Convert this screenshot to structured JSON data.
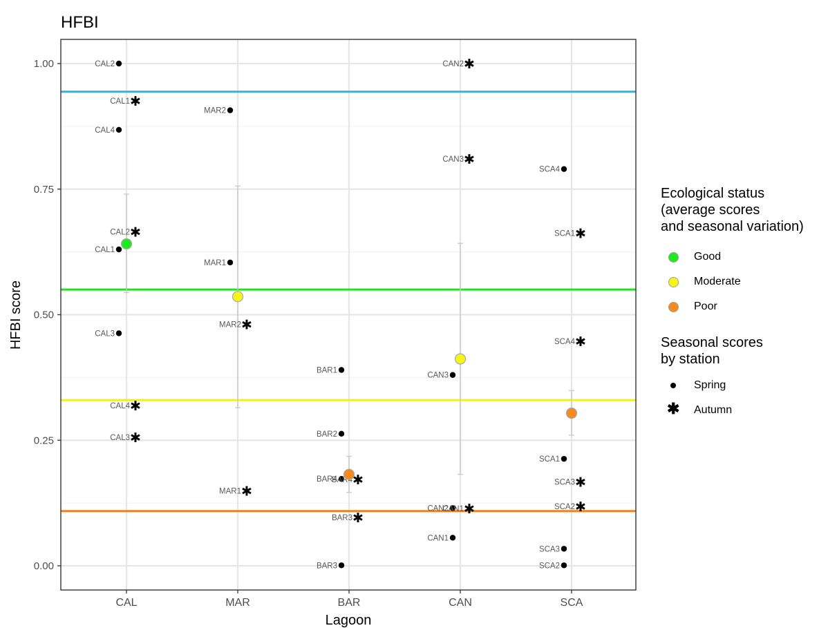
{
  "chart_data": {
    "type": "scatter",
    "title": "HFBI",
    "xlabel": "Lagoon",
    "ylabel": "HFBI score",
    "categories": [
      "CAL",
      "MAR",
      "BAR",
      "CAN",
      "SCA"
    ],
    "ylim": [
      -0.04,
      1.05
    ],
    "yticks": [
      "0.00",
      "0.25",
      "0.50",
      "0.75",
      "1.00"
    ],
    "grid": true,
    "legend_position": "right",
    "thresholds": [
      {
        "value": 0.944,
        "color": "#29b6e6"
      },
      {
        "value": 0.55,
        "color": "#22e022"
      },
      {
        "value": 0.33,
        "color": "#eef020"
      },
      {
        "value": 0.109,
        "color": "#f08020"
      }
    ],
    "status_colors": {
      "Good": "#22e822",
      "Moderate": "#f5f51a",
      "Poor": "#f58a1f"
    },
    "average_scores": [
      {
        "lagoon": "CAL",
        "mean": 0.641,
        "lower": 0.544,
        "upper": 0.74,
        "status": "Good"
      },
      {
        "lagoon": "MAR",
        "mean": 0.536,
        "lower": 0.315,
        "upper": 0.756,
        "status": "Moderate"
      },
      {
        "lagoon": "BAR",
        "mean": 0.182,
        "lower": 0.146,
        "upper": 0.218,
        "status": "Poor"
      },
      {
        "lagoon": "CAN",
        "mean": 0.412,
        "lower": 0.182,
        "upper": 0.642,
        "status": "Moderate"
      },
      {
        "lagoon": "SCA",
        "mean": 0.304,
        "lower": 0.26,
        "upper": 0.349,
        "status": "Poor"
      }
    ],
    "series": [
      {
        "name": "Spring",
        "points": [
          {
            "lagoon": "CAL",
            "station": "CAL2",
            "value": 1.0
          },
          {
            "lagoon": "CAL",
            "station": "CAL4",
            "value": 0.868
          },
          {
            "lagoon": "CAL",
            "station": "CAL1",
            "value": 0.63
          },
          {
            "lagoon": "CAL",
            "station": "CAL3",
            "value": 0.463
          },
          {
            "lagoon": "MAR",
            "station": "MAR2",
            "value": 0.907
          },
          {
            "lagoon": "MAR",
            "station": "MAR1",
            "value": 0.604
          },
          {
            "lagoon": "BAR",
            "station": "BAR1",
            "value": 0.39
          },
          {
            "lagoon": "BAR",
            "station": "BAR2",
            "value": 0.263
          },
          {
            "lagoon": "BAR",
            "station": "BAR4",
            "value": 0.173
          },
          {
            "lagoon": "BAR",
            "station": "BAR3",
            "value": 0.001
          },
          {
            "lagoon": "CAN",
            "station": "CAN3",
            "value": 0.38
          },
          {
            "lagoon": "CAN",
            "station": "CAN2",
            "value": 0.115
          },
          {
            "lagoon": "CAN",
            "station": "CAN1",
            "value": 0.056
          },
          {
            "lagoon": "SCA",
            "station": "SCA4",
            "value": 0.79
          },
          {
            "lagoon": "SCA",
            "station": "SCA1",
            "value": 0.213
          },
          {
            "lagoon": "SCA",
            "station": "SCA3",
            "value": 0.034
          },
          {
            "lagoon": "SCA",
            "station": "SCA2",
            "value": 0.001
          }
        ]
      },
      {
        "name": "Autumn",
        "points": [
          {
            "lagoon": "CAL",
            "station": "CAL1",
            "value": 0.926
          },
          {
            "lagoon": "CAL",
            "station": "CAL2",
            "value": 0.665
          },
          {
            "lagoon": "CAL",
            "station": "CAL4",
            "value": 0.319
          },
          {
            "lagoon": "CAL",
            "station": "CAL3",
            "value": 0.256
          },
          {
            "lagoon": "MAR",
            "station": "MAR2",
            "value": 0.481
          },
          {
            "lagoon": "MAR",
            "station": "MAR1",
            "value": 0.149
          },
          {
            "lagoon": "BAR",
            "station": "BAR4",
            "value": 0.172
          },
          {
            "lagoon": "BAR",
            "station": "BAR3",
            "value": 0.096
          },
          {
            "lagoon": "CAN",
            "station": "CAN2",
            "value": 1.0
          },
          {
            "lagoon": "CAN",
            "station": "CAN3",
            "value": 0.81
          },
          {
            "lagoon": "CAN",
            "station": "CAN1",
            "value": 0.114
          },
          {
            "lagoon": "SCA",
            "station": "SCA1",
            "value": 0.662
          },
          {
            "lagoon": "SCA",
            "station": "SCA4",
            "value": 0.447
          },
          {
            "lagoon": "SCA",
            "station": "SCA3",
            "value": 0.167
          },
          {
            "lagoon": "SCA",
            "station": "SCA2",
            "value": 0.118
          }
        ]
      }
    ],
    "legend": {
      "status_title": "Ecological status\n(average scores\nand seasonal variation)",
      "status_items": [
        "Good",
        "Moderate",
        "Poor"
      ],
      "season_title": "Seasonal scores\nby station",
      "season_items": [
        "Spring",
        "Autumn"
      ]
    }
  }
}
